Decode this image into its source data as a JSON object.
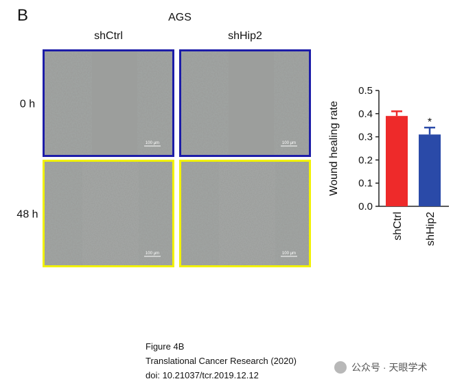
{
  "panel_label": "B",
  "cell_line": "AGS",
  "columns": [
    "shCtrl",
    "shHip2"
  ],
  "rows": [
    "0 h",
    "48 h"
  ],
  "scale_bar": "100 μm",
  "chart_data": {
    "type": "bar",
    "ylabel": "Wound healing rate",
    "categories": [
      "shCtrl",
      "shHip2"
    ],
    "values": [
      0.39,
      0.31
    ],
    "errors": [
      0.02,
      0.03
    ],
    "colors": [
      "#ee2a2a",
      "#2a4aa8"
    ],
    "annotations": [
      null,
      "*"
    ],
    "ylim": [
      0,
      0.5
    ],
    "yticks": [
      {
        "value": 0,
        "label": "0.0"
      },
      0.1,
      0.2,
      0.3,
      0.4,
      0.5
    ]
  },
  "caption": [
    "Figure 4B",
    "Translational Cancer Research (2020)",
    "doi: 10.21037/tcr.2019.12.12"
  ],
  "watermark": "公众号 · 天眼学术"
}
